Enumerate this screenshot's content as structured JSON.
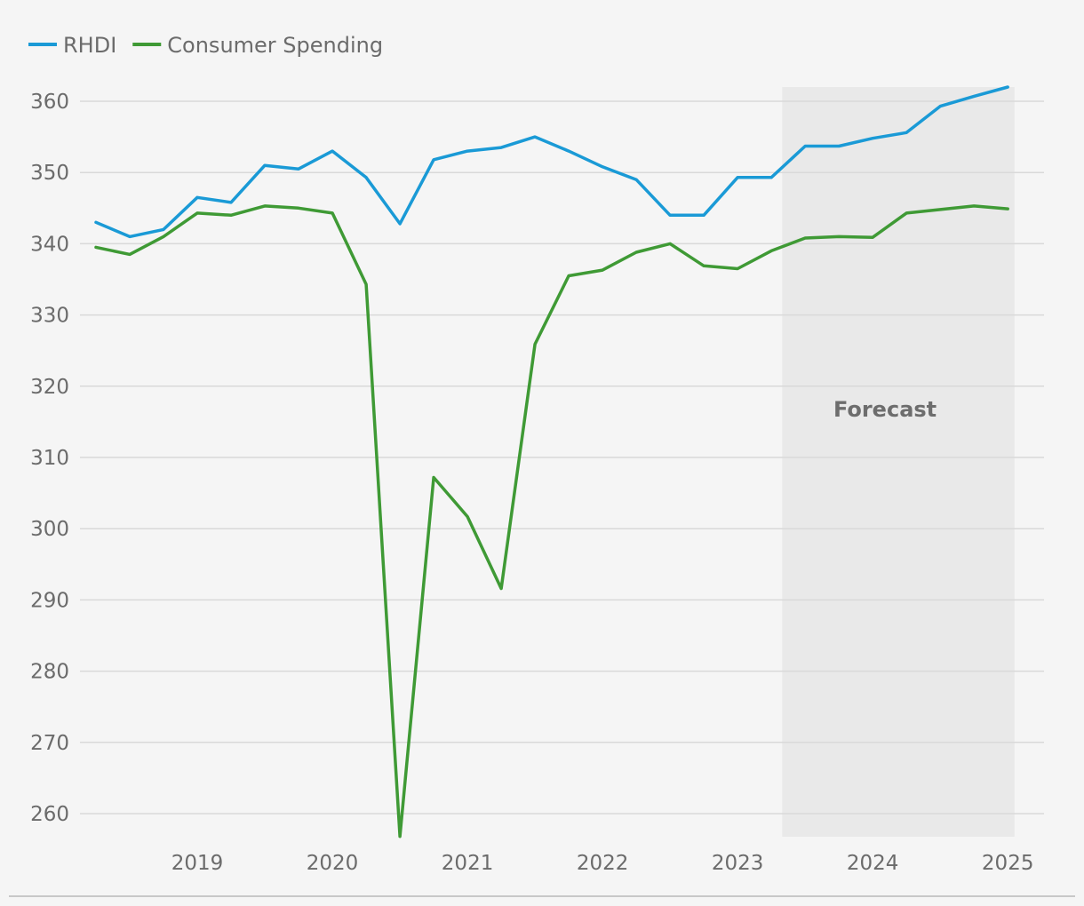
{
  "chart_data": {
    "type": "line",
    "title": "",
    "xlabel": "",
    "ylabel": "",
    "ylim": [
      256,
      362
    ],
    "yticks": [
      260,
      270,
      280,
      290,
      300,
      310,
      320,
      330,
      340,
      350,
      360
    ],
    "x_tick_labels": [
      "2019",
      "2020",
      "2021",
      "2022",
      "2023",
      "2024",
      "2025"
    ],
    "x": [
      2018.25,
      2018.5,
      2018.75,
      2019.0,
      2019.25,
      2019.5,
      2019.75,
      2020.0,
      2020.25,
      2020.5,
      2020.75,
      2021.0,
      2021.25,
      2021.5,
      2021.75,
      2022.0,
      2022.25,
      2022.5,
      2022.75,
      2023.0,
      2023.25,
      2023.5,
      2023.75,
      2024.0,
      2024.25,
      2024.5,
      2024.75,
      2025.0
    ],
    "xlim": [
      2018.0,
      2025.15
    ],
    "forecast": {
      "label": "Forecast",
      "start": 2023.33,
      "end": 2025.05
    },
    "series": [
      {
        "name": "RHDI",
        "color": "#1a9ad6",
        "values": [
          343.0,
          341.0,
          342.0,
          346.5,
          345.8,
          351.0,
          350.5,
          353.0,
          349.3,
          342.8,
          351.8,
          353.0,
          353.5,
          355.0,
          353.0,
          350.8,
          349.0,
          344.0,
          344.0,
          349.3,
          349.3,
          353.7,
          353.7,
          354.8,
          355.6,
          359.3,
          360.7,
          362.0
        ]
      },
      {
        "name": "Consumer Spending",
        "color": "#3f9a35",
        "values": [
          339.5,
          338.5,
          341.0,
          344.3,
          344.0,
          345.3,
          345.0,
          344.3,
          334.3,
          256.8,
          307.2,
          301.7,
          291.6,
          325.9,
          335.5,
          336.3,
          338.8,
          340.0,
          336.9,
          336.5,
          339.0,
          340.8,
          341.0,
          340.9,
          344.3,
          344.8,
          345.3,
          344.9
        ]
      }
    ]
  }
}
